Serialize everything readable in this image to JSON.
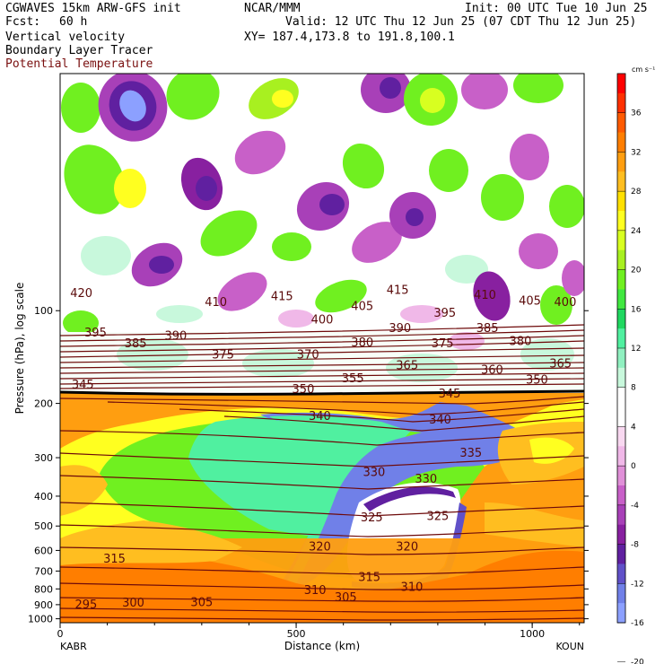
{
  "header": {
    "model": "CGWAVES 15km ARW-GFS init",
    "fcst_label": "Fcst:",
    "fcst_value": "60 h",
    "org": "NCAR/MMM",
    "init": "Init: 00 UTC Tue 10 Jun 25",
    "valid": "Valid: 12 UTC Thu 12 Jun 25 (07 CDT Thu 12 Jun 25)",
    "xy": "XY= 187.4,173.8 to 191.8,100.1",
    "fields": [
      "Vertical velocity",
      "Boundary Layer Tracer"
    ],
    "theta_field": "Potential Temperature"
  },
  "colors": {
    "theta_line": "#6e0a0a",
    "tropopause": "#000000",
    "pbl_tracer": "#f08a1e"
  },
  "chart_data": {
    "type": "heatmap",
    "xlabel": "Distance (km)",
    "ylabel": "Pressure (hPa), log scale",
    "x_ticks": [
      "0",
      "500",
      "1000"
    ],
    "x_tick_values": [
      0,
      500,
      1000
    ],
    "xlim": [
      0,
      1110
    ],
    "y_ticks": [
      "100",
      "200",
      "300",
      "400",
      "500",
      "600",
      "700",
      "800",
      "900",
      "1000"
    ],
    "y_tick_values": [
      100,
      200,
      300,
      400,
      500,
      600,
      700,
      800,
      900,
      1000
    ],
    "ylim": [
      1030,
      17
    ],
    "y_scale": "log",
    "endpoints": {
      "left": "KABR",
      "right": "KOUN"
    },
    "colorbar": {
      "units": "cm s⁻¹",
      "ticks": [
        "36",
        "32",
        "28",
        "24",
        "20",
        "16",
        "12",
        "8",
        "4",
        "0",
        "-4",
        "-8",
        "-12",
        "-16",
        "-20"
      ],
      "colors": [
        "#ff0000",
        "#ff3000",
        "#ff5a00",
        "#ff7e00",
        "#ff9e10",
        "#ffbe20",
        "#ffe000",
        "#ffff20",
        "#d8ff20",
        "#a8f020",
        "#70f020",
        "#40e840",
        "#20d860",
        "#50f0a0",
        "#90f0c0",
        "#c8f8dc",
        "#ffffff",
        "#ffffff",
        "#f8d8f0",
        "#f0b8e8",
        "#e090d8",
        "#c860c8",
        "#a840b8",
        "#8820a0",
        "#6020a0",
        "#6050c8",
        "#7080e8",
        "#8ca0ff"
      ]
    },
    "theta_labels": [
      {
        "text": "420",
        "x": 45,
        "p": 88
      },
      {
        "text": "410",
        "x": 330,
        "p": 94
      },
      {
        "text": "415",
        "x": 470,
        "p": 90
      },
      {
        "text": "405",
        "x": 640,
        "p": 97
      },
      {
        "text": "415",
        "x": 715,
        "p": 86
      },
      {
        "text": "410",
        "x": 900,
        "p": 89
      },
      {
        "text": "405",
        "x": 995,
        "p": 93
      },
      {
        "text": "400",
        "x": 1070,
        "p": 94
      },
      {
        "text": "395",
        "x": 75,
        "p": 118
      },
      {
        "text": "385",
        "x": 160,
        "p": 128
      },
      {
        "text": "390",
        "x": 245,
        "p": 121
      },
      {
        "text": "400",
        "x": 555,
        "p": 107
      },
      {
        "text": "390",
        "x": 720,
        "p": 114
      },
      {
        "text": "395",
        "x": 815,
        "p": 102
      },
      {
        "text": "385",
        "x": 905,
        "p": 114
      },
      {
        "text": "375",
        "x": 345,
        "p": 139
      },
      {
        "text": "370",
        "x": 525,
        "p": 139
      },
      {
        "text": "380",
        "x": 640,
        "p": 127
      },
      {
        "text": "375",
        "x": 810,
        "p": 128
      },
      {
        "text": "380",
        "x": 975,
        "p": 126
      },
      {
        "text": "365",
        "x": 735,
        "p": 151
      },
      {
        "text": "360",
        "x": 915,
        "p": 156
      },
      {
        "text": "365",
        "x": 1060,
        "p": 149
      },
      {
        "text": "345",
        "x": 48,
        "p": 174
      },
      {
        "text": "355",
        "x": 620,
        "p": 166
      },
      {
        "text": "350",
        "x": 515,
        "p": 180
      },
      {
        "text": "345",
        "x": 825,
        "p": 186
      },
      {
        "text": "350",
        "x": 1010,
        "p": 168
      },
      {
        "text": "340",
        "x": 550,
        "p": 220
      },
      {
        "text": "340",
        "x": 805,
        "p": 226
      },
      {
        "text": "335",
        "x": 870,
        "p": 290
      },
      {
        "text": "330",
        "x": 665,
        "p": 335
      },
      {
        "text": "330",
        "x": 775,
        "p": 352
      },
      {
        "text": "325",
        "x": 660,
        "p": 470
      },
      {
        "text": "325",
        "x": 800,
        "p": 465
      },
      {
        "text": "320",
        "x": 550,
        "p": 585
      },
      {
        "text": "320",
        "x": 735,
        "p": 585
      },
      {
        "text": "315",
        "x": 115,
        "p": 640
      },
      {
        "text": "315",
        "x": 655,
        "p": 735
      },
      {
        "text": "310",
        "x": 540,
        "p": 810
      },
      {
        "text": "310",
        "x": 745,
        "p": 790
      },
      {
        "text": "305",
        "x": 605,
        "p": 855
      },
      {
        "text": "305",
        "x": 300,
        "p": 885
      },
      {
        "text": "300",
        "x": 155,
        "p": 890
      },
      {
        "text": "295",
        "x": 55,
        "p": 900
      }
    ]
  }
}
